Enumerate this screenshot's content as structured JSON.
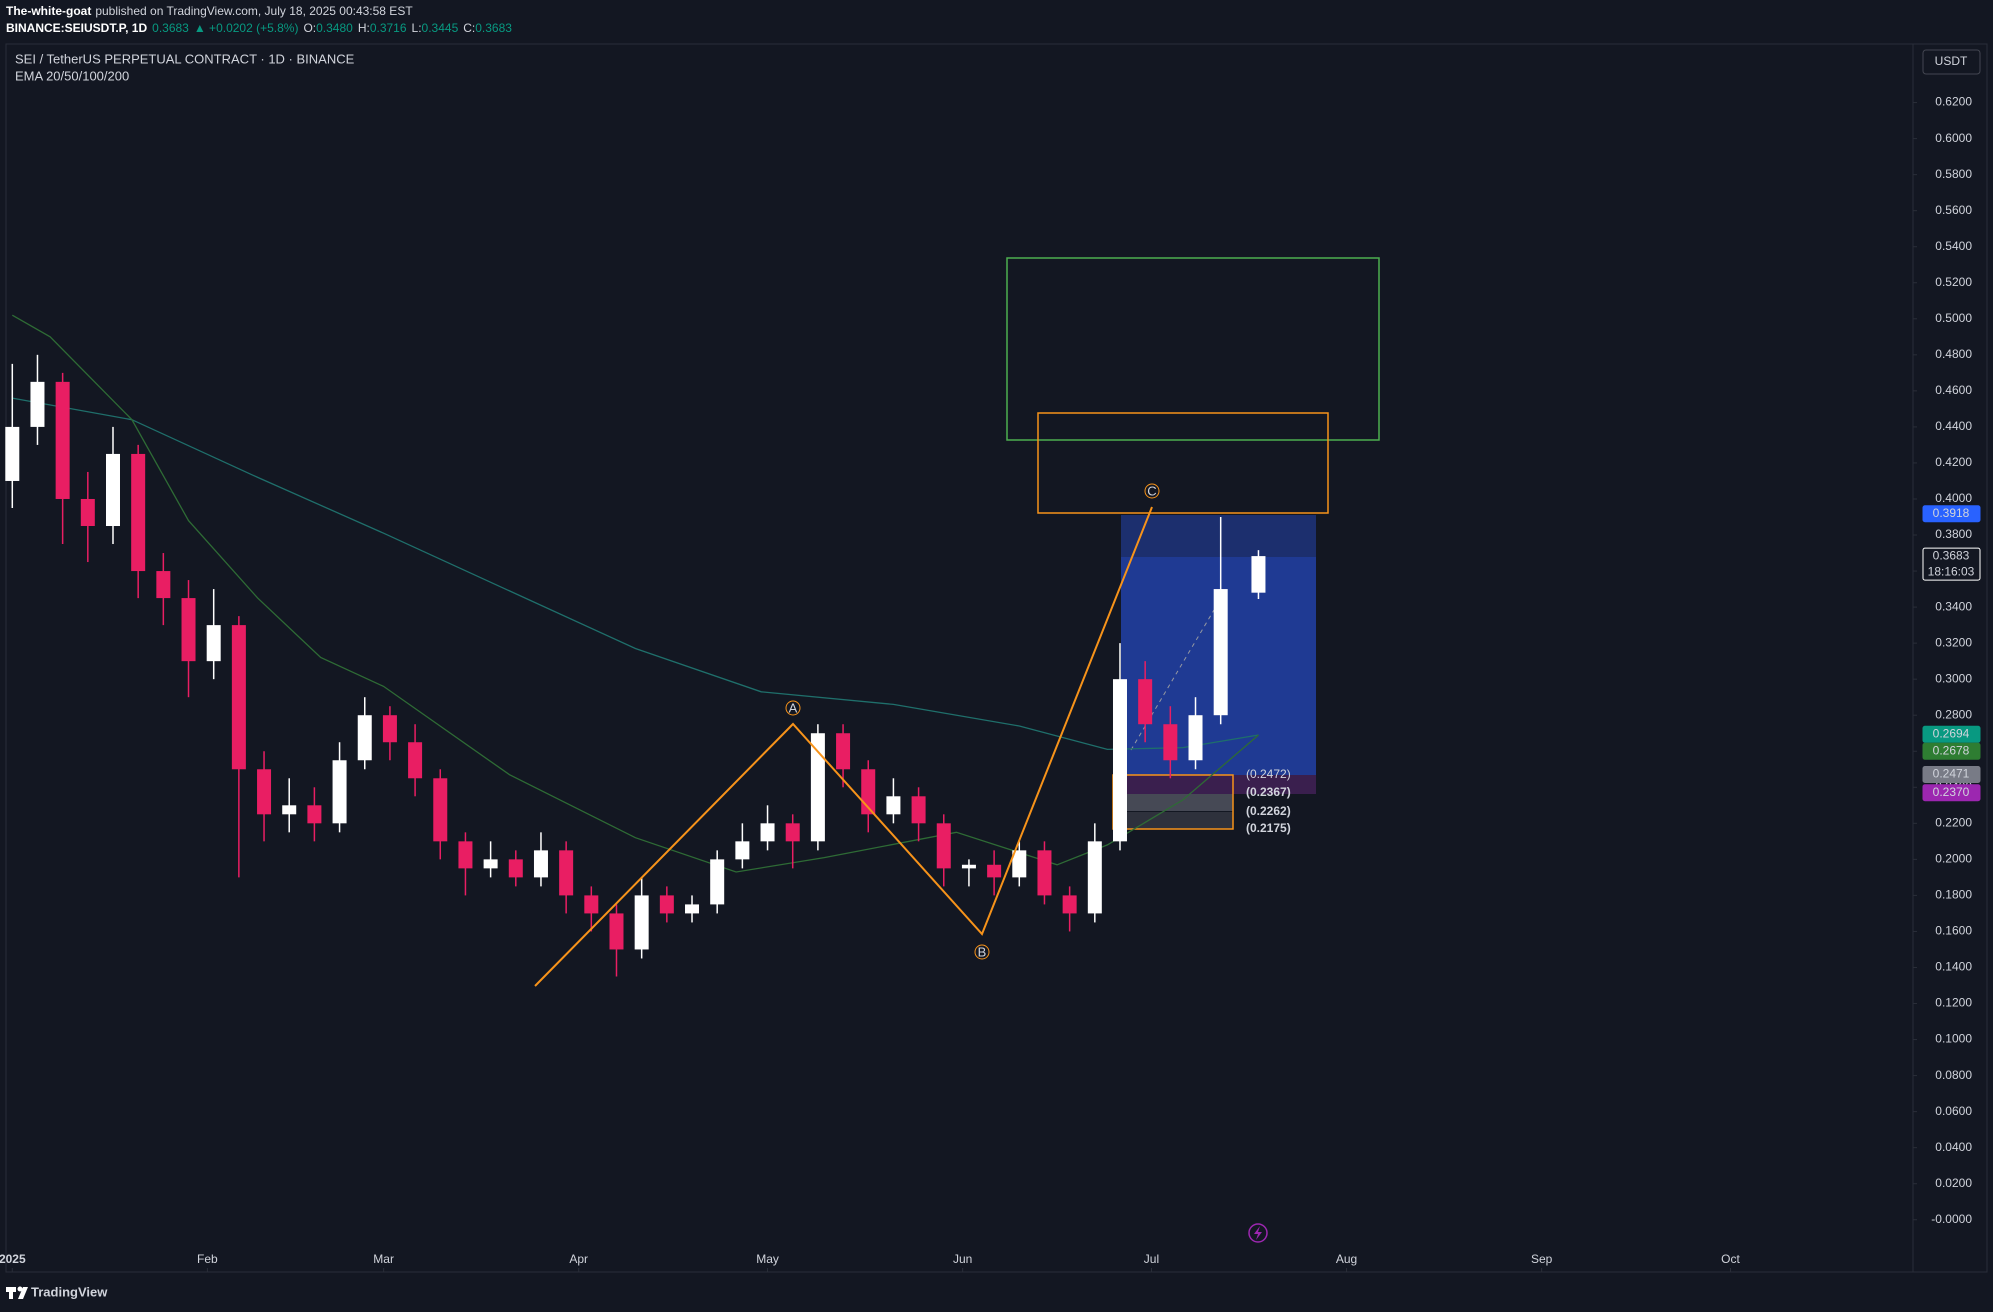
{
  "header": {
    "author": "The-white-goat",
    "published": "published on TradingView.com, July 18, 2025 00:43:58 EST",
    "symbol": "BINANCE:SEIUSDT.P, 1D",
    "last": "0.3683",
    "change": "▲ +0.0202 (+5.8%)",
    "ohlc_labels": [
      "O:",
      "H:",
      "L:",
      "C:"
    ],
    "ohlc_values": [
      "0.3480",
      "0.3716",
      "0.3445",
      "0.3683"
    ]
  },
  "footer": {
    "brand": "TradingView"
  },
  "chart_data": {
    "type": "candlestick",
    "title": "SEI / TetherUS PERPETUAL CONTRACT · 1D · BINANCE",
    "subtitle": "EMA 20/50/100/200",
    "currency": "USDT",
    "x": [
      0,
      4,
      8,
      12,
      16,
      20,
      24,
      28,
      32,
      36,
      40,
      44,
      48,
      52,
      56,
      60,
      64,
      68,
      72,
      76,
      80,
      84,
      88,
      92,
      96,
      100,
      104,
      108,
      112,
      116,
      120,
      124,
      128,
      132,
      136,
      140,
      144,
      148,
      152,
      156,
      160,
      164,
      168,
      172,
      176,
      180,
      184,
      188,
      192,
      198
    ],
    "open": [
      0.41,
      0.44,
      0.465,
      0.4,
      0.385,
      0.425,
      0.36,
      0.345,
      0.31,
      0.33,
      0.25,
      0.225,
      0.23,
      0.22,
      0.255,
      0.28,
      0.265,
      0.245,
      0.21,
      0.195,
      0.2,
      0.19,
      0.205,
      0.18,
      0.17,
      0.15,
      0.18,
      0.17,
      0.175,
      0.2,
      0.21,
      0.22,
      0.21,
      0.27,
      0.25,
      0.225,
      0.235,
      0.22,
      0.195,
      0.197,
      0.19,
      0.205,
      0.18,
      0.17,
      0.21,
      0.3,
      0.275,
      0.255,
      0.28,
      0.348
    ],
    "high": [
      0.475,
      0.48,
      0.47,
      0.415,
      0.44,
      0.43,
      0.37,
      0.355,
      0.35,
      0.335,
      0.26,
      0.245,
      0.24,
      0.265,
      0.29,
      0.285,
      0.275,
      0.25,
      0.215,
      0.21,
      0.205,
      0.215,
      0.21,
      0.185,
      0.175,
      0.19,
      0.185,
      0.18,
      0.205,
      0.22,
      0.23,
      0.225,
      0.275,
      0.275,
      0.255,
      0.245,
      0.24,
      0.225,
      0.2,
      0.205,
      0.21,
      0.21,
      0.185,
      0.22,
      0.32,
      0.31,
      0.285,
      0.29,
      0.39,
      0.3716
    ],
    "low": [
      0.395,
      0.43,
      0.375,
      0.365,
      0.375,
      0.345,
      0.33,
      0.29,
      0.3,
      0.19,
      0.21,
      0.215,
      0.21,
      0.215,
      0.25,
      0.255,
      0.235,
      0.2,
      0.18,
      0.19,
      0.185,
      0.185,
      0.17,
      0.16,
      0.135,
      0.145,
      0.165,
      0.165,
      0.17,
      0.195,
      0.205,
      0.195,
      0.205,
      0.24,
      0.215,
      0.22,
      0.21,
      0.185,
      0.185,
      0.18,
      0.185,
      0.175,
      0.16,
      0.165,
      0.205,
      0.265,
      0.245,
      0.25,
      0.275,
      0.3445
    ],
    "close": [
      0.44,
      0.465,
      0.4,
      0.385,
      0.425,
      0.36,
      0.345,
      0.31,
      0.33,
      0.25,
      0.225,
      0.23,
      0.22,
      0.255,
      0.28,
      0.265,
      0.245,
      0.21,
      0.195,
      0.2,
      0.19,
      0.205,
      0.18,
      0.17,
      0.15,
      0.18,
      0.17,
      0.175,
      0.2,
      0.21,
      0.22,
      0.21,
      0.27,
      0.25,
      0.225,
      0.235,
      0.22,
      0.195,
      0.197,
      0.19,
      0.205,
      0.18,
      0.17,
      0.21,
      0.3,
      0.275,
      0.255,
      0.28,
      0.35,
      0.3683
    ],
    "up_color": "#ffffff",
    "down_color": "#e91e63",
    "overlays": [
      {
        "color": "#1f6f6b",
        "x": [
          0,
          19,
          39,
          59,
          79,
          99,
          119,
          140,
          160,
          174,
          186,
          198
        ],
        "values": [
          0.456,
          0.444,
          0.412,
          0.381,
          0.349,
          0.317,
          0.293,
          0.286,
          0.274,
          0.261,
          0.262,
          0.269
        ]
      },
      {
        "color": "#2e6b35",
        "x": [
          0,
          6,
          19,
          28,
          39,
          49,
          59,
          79,
          99,
          115,
          129,
          150,
          166,
          174,
          186,
          198
        ],
        "values": [
          0.502,
          0.49,
          0.444,
          0.388,
          0.345,
          0.312,
          0.296,
          0.247,
          0.212,
          0.193,
          0.201,
          0.215,
          0.197,
          0.208,
          0.233,
          0.269
        ]
      }
    ],
    "xlim": [
      -1,
      302
    ],
    "xticks": [
      {
        "value": 0,
        "label": "2025"
      },
      {
        "value": 31,
        "label": "Feb"
      },
      {
        "value": 59,
        "label": "Mar"
      },
      {
        "value": 90,
        "label": "Apr"
      },
      {
        "value": 120,
        "label": "May"
      },
      {
        "value": 151,
        "label": "Jun"
      },
      {
        "value": 181,
        "label": "Jul"
      },
      {
        "value": 212,
        "label": "Aug"
      },
      {
        "value": 243,
        "label": "Sep"
      },
      {
        "value": 273,
        "label": "Oct"
      }
    ],
    "ylim": [
      -0.029,
      0.6525
    ],
    "yticks": [
      {
        "value": 0.62,
        "label": "0.6200"
      },
      {
        "value": 0.6,
        "label": "0.6000"
      },
      {
        "value": 0.58,
        "label": "0.5800"
      },
      {
        "value": 0.56,
        "label": "0.5600"
      },
      {
        "value": 0.54,
        "label": "0.5400"
      },
      {
        "value": 0.52,
        "label": "0.5200"
      },
      {
        "value": 0.5,
        "label": "0.5000"
      },
      {
        "value": 0.48,
        "label": "0.4800"
      },
      {
        "value": 0.46,
        "label": "0.4600"
      },
      {
        "value": 0.44,
        "label": "0.4400"
      },
      {
        "value": 0.42,
        "label": "0.4200"
      },
      {
        "value": 0.4,
        "label": "0.4000"
      },
      {
        "value": 0.38,
        "label": "0.3800"
      },
      {
        "value": 0.36,
        "label": "0.3600"
      },
      {
        "value": 0.34,
        "label": "0.3400"
      },
      {
        "value": 0.32,
        "label": "0.3200"
      },
      {
        "value": 0.3,
        "label": "0.3000"
      },
      {
        "value": 0.28,
        "label": "0.2800"
      },
      {
        "value": 0.26,
        "label": "0.2600"
      },
      {
        "value": 0.24,
        "label": "0.2400"
      },
      {
        "value": 0.22,
        "label": "0.2200"
      },
      {
        "value": 0.2,
        "label": "0.2000"
      },
      {
        "value": 0.18,
        "label": "0.1800"
      },
      {
        "value": 0.16,
        "label": "0.1600"
      },
      {
        "value": 0.14,
        "label": "0.1400"
      },
      {
        "value": 0.12,
        "label": "0.1200"
      },
      {
        "value": 0.1,
        "label": "0.1000"
      },
      {
        "value": 0.08,
        "label": "0.0800"
      },
      {
        "value": 0.06,
        "label": "0.0600"
      },
      {
        "value": 0.04,
        "label": "0.0400"
      },
      {
        "value": 0.02,
        "label": "0.0200"
      },
      {
        "value": 0,
        "label": "-0.0000"
      }
    ],
    "price_badges": [
      {
        "value": 0.3918,
        "color": "#2962ff"
      },
      {
        "value": 0.3683,
        "color": "#ffffff",
        "countdown": "18:16:03"
      },
      {
        "value": 0.2694,
        "color": "#089981"
      },
      {
        "value": 0.2678,
        "color": "#2e7d32"
      },
      {
        "value": 0.2471,
        "color": "#787b86"
      },
      {
        "value": 0.237,
        "label": "0.2370",
        "color": "#9c27b0"
      }
    ],
    "wave_labels": [
      "A",
      "B",
      "C"
    ],
    "level_labels": [
      "(0.2472)",
      "(0.2367)",
      "(0.2262)",
      "(0.2175)"
    ]
  }
}
